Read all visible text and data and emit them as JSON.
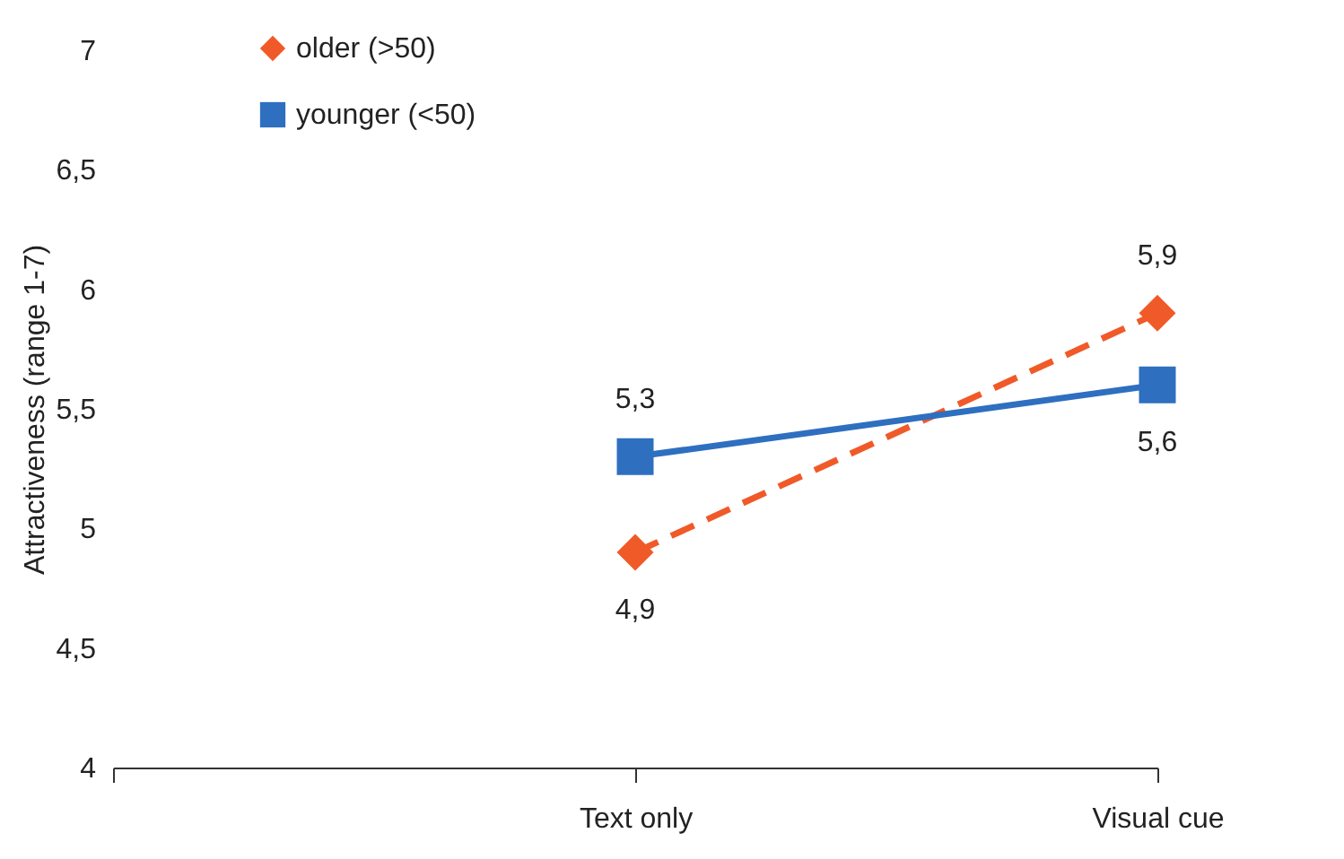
{
  "chart_data": {
    "type": "line",
    "ylabel": "Attractiveness (range 1-7)",
    "categories": [
      null,
      "Text only",
      "Visual cue"
    ],
    "series": [
      {
        "name": "older (>50)",
        "color": "#f05a28",
        "values": [
          null,
          4.9,
          5.9
        ],
        "value_labels": [
          null,
          "4,9",
          "5,9"
        ],
        "marker": "diamond",
        "line_style": "dashed"
      },
      {
        "name": "younger (<50)",
        "color": "#2e6fc0",
        "values": [
          null,
          5.3,
          5.6
        ],
        "value_labels": [
          null,
          "5,3",
          "5,6"
        ],
        "marker": "square",
        "line_style": "solid"
      }
    ],
    "ylim": [
      4,
      7
    ],
    "yticks": [
      4,
      {
        "value": 4.5,
        "label": "4,5"
      },
      5,
      {
        "value": 5.5,
        "label": "5,5"
      },
      6,
      {
        "value": 6.5,
        "label": "6,5"
      },
      7
    ],
    "grid": false,
    "legend": "top left"
  }
}
